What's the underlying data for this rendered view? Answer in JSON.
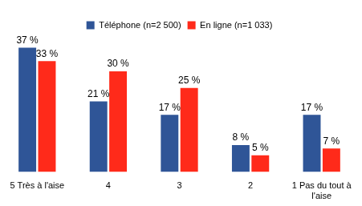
{
  "chart_data": {
    "type": "bar",
    "categories": [
      "5 Très à l'aise",
      "4",
      "3",
      "2",
      "1 Pas du tout à l'aise"
    ],
    "series": [
      {
        "name": "Téléphone (n=2 500)",
        "color": "#2f5597",
        "values": [
          37,
          21,
          17,
          8,
          17
        ],
        "value_labels": [
          "37 %",
          "21 %",
          "17 %",
          "8 %",
          "17 %"
        ]
      },
      {
        "name": "En ligne (n=1 033)",
        "color": "#ff2a1a",
        "values": [
          33,
          30,
          25,
          5,
          7
        ],
        "value_labels": [
          "33 %",
          "30 %",
          "25 %",
          "5 %",
          "7 %"
        ]
      }
    ],
    "legend": "top",
    "grid": false,
    "data_labels": true,
    "tick_labels": "x"
  }
}
